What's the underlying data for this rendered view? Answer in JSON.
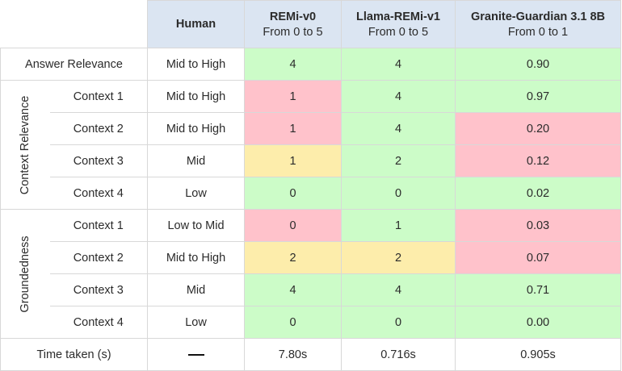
{
  "header": {
    "human": "Human",
    "remi_v0": {
      "name": "REMi-v0",
      "range": "From 0 to 5"
    },
    "llama_remi": {
      "name": "Llama-REMi-v1",
      "range": "From 0 to 5"
    },
    "granite": {
      "name": "Granite-Guardian 3.1 8B",
      "range": "From 0 to 1"
    }
  },
  "answer_relevance": {
    "label": "Answer Relevance",
    "human": "Mid to High",
    "remi_v0": "4",
    "llama_remi": "4",
    "granite": "0.90"
  },
  "context_relevance": {
    "group_label": "Context Relevance",
    "rows": [
      {
        "label": "Context 1",
        "human": "Mid to High",
        "remi_v0": "1",
        "llama_remi": "4",
        "granite": "0.97"
      },
      {
        "label": "Context 2",
        "human": "Mid to High",
        "remi_v0": "1",
        "llama_remi": "4",
        "granite": "0.20"
      },
      {
        "label": "Context 3",
        "human": "Mid",
        "remi_v0": "1",
        "llama_remi": "2",
        "granite": "0.12"
      },
      {
        "label": "Context 4",
        "human": "Low",
        "remi_v0": "0",
        "llama_remi": "0",
        "granite": "0.02"
      }
    ]
  },
  "groundedness": {
    "group_label": "Groundedness",
    "rows": [
      {
        "label": "Context 1",
        "human": "Low to Mid",
        "remi_v0": "0",
        "llama_remi": "1",
        "granite": "0.03"
      },
      {
        "label": "Context 2",
        "human": "Mid to High",
        "remi_v0": "2",
        "llama_remi": "2",
        "granite": "0.07"
      },
      {
        "label": "Context 3",
        "human": "Mid",
        "remi_v0": "4",
        "llama_remi": "4",
        "granite": "0.71"
      },
      {
        "label": "Context 4",
        "human": "Low",
        "remi_v0": "0",
        "llama_remi": "0",
        "granite": "0.00"
      }
    ]
  },
  "time_taken": {
    "label": "Time taken (s)",
    "human_symbol": "dash",
    "remi_v0": "7.80s",
    "llama_remi": "0.716s",
    "granite": "0.905s"
  },
  "colors": {
    "header_bg": "#dbe5f2",
    "green": "#ccfcc8",
    "red": "#ffc2cb",
    "yellow": "#fdedab"
  }
}
